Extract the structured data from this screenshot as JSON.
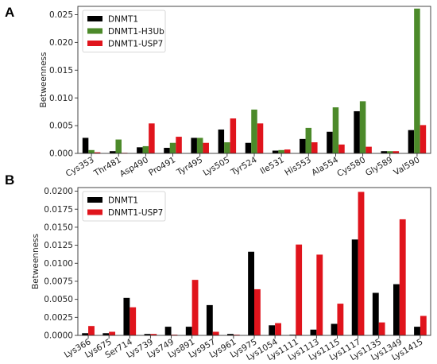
{
  "chart_data": [
    {
      "panel": "A",
      "type": "bar",
      "title": "",
      "xlabel": "",
      "ylabel": "Betweenness",
      "ylim": [
        0,
        0.0265
      ],
      "yticks": [
        "0.000",
        "0.005",
        "0.010",
        "0.015",
        "0.020",
        "0.025"
      ],
      "ytick_values": [
        0,
        0.005,
        0.01,
        0.015,
        0.02,
        0.025
      ],
      "legend_position": "top-left",
      "grid": false,
      "categories": [
        "Cys353",
        "Thr481",
        "Asp490",
        "Pro491",
        "Tyr495",
        "Lys505",
        "Tyr524",
        "Ile531",
        "His553",
        "Ala554",
        "Cys580",
        "Gly589",
        "Val590"
      ],
      "series": [
        {
          "name": "DNMT1",
          "color": "#000000",
          "values": [
            0.0028,
            0.0004,
            0.0011,
            0.001,
            0.0028,
            0.0043,
            0.0019,
            0.0005,
            0.0026,
            0.0039,
            0.0076,
            0.0004,
            0.0042
          ]
        },
        {
          "name": "DNMT1-H3Ub",
          "color": "#4c8a2a",
          "values": [
            0.0006,
            0.0025,
            0.0013,
            0.0019,
            0.0028,
            0.002,
            0.0079,
            0.0006,
            0.0046,
            0.0083,
            0.0094,
            0.0004,
            0.0261
          ]
        },
        {
          "name": "DNMT1-USP7",
          "color": "#e0141c",
          "values": [
            0.0002,
            0.0001,
            0.0054,
            0.003,
            0.0019,
            0.0063,
            0.0054,
            0.0007,
            0.002,
            0.0016,
            0.0012,
            0.0004,
            0.0051
          ]
        }
      ]
    },
    {
      "panel": "B",
      "type": "bar",
      "title": "",
      "xlabel": "",
      "ylabel": "Betweenness",
      "ylim": [
        0,
        0.0205
      ],
      "yticks": [
        "0.0000",
        "0.0025",
        "0.0050",
        "0.0075",
        "0.0100",
        "0.0125",
        "0.0150",
        "0.0175",
        "0.0200"
      ],
      "ytick_values": [
        0,
        0.0025,
        0.005,
        0.0075,
        0.01,
        0.0125,
        0.015,
        0.0175,
        0.02
      ],
      "legend_position": "top-left",
      "grid": false,
      "categories": [
        "Lys366",
        "Lys675",
        "Ser714",
        "Lys739",
        "Lys749",
        "Lys891",
        "Lys957",
        "Lys961",
        "Lys975",
        "Lys1054",
        "Lys1111",
        "Lys1113",
        "Lys1115",
        "Lys1117",
        "Lys1135",
        "Lys1349",
        "Lys1415"
      ],
      "series": [
        {
          "name": "DNMT1",
          "color": "#000000",
          "values": [
            0.0003,
            0.0003,
            0.0052,
            0.0002,
            0.0012,
            0.0012,
            0.0042,
            0.0002,
            0.0116,
            0.0014,
            0.0001,
            0.0008,
            0.0016,
            0.0133,
            0.0059,
            0.0071,
            0.0012
          ]
        },
        {
          "name": "DNMT1-USP7",
          "color": "#e0141c",
          "values": [
            0.0013,
            0.0005,
            0.0039,
            0.0002,
            0.0001,
            0.0077,
            0.0005,
            0.0001,
            0.0064,
            0.0017,
            0.0126,
            0.0112,
            0.0044,
            0.0199,
            0.0018,
            0.0161,
            0.0027
          ]
        }
      ]
    }
  ]
}
